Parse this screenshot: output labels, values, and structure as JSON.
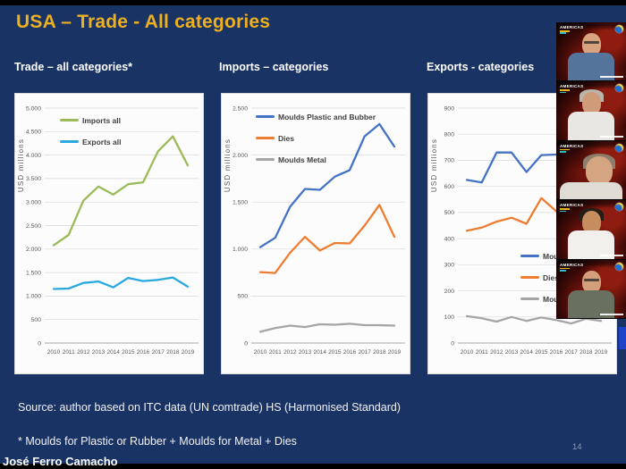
{
  "slide": {
    "title": "USA – Trade - All categories",
    "source": "Source: author based on ITC data (UN comtrade) HS (Harmonised Standard)",
    "footnote": "* Moulds for Plastic or Rubber + Moulds for Metal + Dies",
    "author": "José Ferro Camacho",
    "page_number": "14"
  },
  "colors": {
    "slide_bg": "#1a3365",
    "title_gold": "#edb021",
    "imports_green": "#9bbb59",
    "exports_cyan": "#2aa9e0",
    "moulds_blue": "#4472c4",
    "dies_orange": "#ed7d31",
    "metal_gray": "#a5a5a5"
  },
  "chart_data": [
    {
      "type": "line",
      "title": "Trade – all categories*",
      "ylabel": "USD millions",
      "x": [
        2010,
        2011,
        2012,
        2013,
        2014,
        2015,
        2016,
        2017,
        2018,
        2019
      ],
      "ylim": [
        0,
        5000
      ],
      "grid": true,
      "legend_position": "top-left",
      "ytick_labels": [
        "0",
        "500",
        "1.000",
        "1.500",
        "2.000",
        "2.500",
        "3.000",
        "3.500",
        "4.000",
        "4.500",
        "5.000"
      ],
      "series": [
        {
          "name": "Imports all",
          "color": "#9bbb59",
          "values": [
            2080,
            2300,
            3030,
            3330,
            3160,
            3380,
            3420,
            4080,
            4400,
            3780
          ]
        },
        {
          "name": "Exports all",
          "color": "#2aa9e0",
          "values": [
            1150,
            1160,
            1280,
            1310,
            1185,
            1385,
            1320,
            1345,
            1395,
            1200
          ]
        }
      ]
    },
    {
      "type": "line",
      "title": "Imports – categories",
      "ylabel": "USD millions",
      "x": [
        2010,
        2011,
        2012,
        2013,
        2014,
        2015,
        2016,
        2017,
        2018,
        2019
      ],
      "ylim": [
        0,
        2500
      ],
      "grid": true,
      "legend_position": "top-left",
      "ytick_labels": [
        "0",
        "500",
        "1.000",
        "1.500",
        "2.000",
        "2.500"
      ],
      "series": [
        {
          "name": "Moulds Plastic and Bubber",
          "color": "#4472c4",
          "values": [
            1020,
            1120,
            1450,
            1640,
            1630,
            1770,
            1840,
            2200,
            2330,
            2090
          ]
        },
        {
          "name": "Dies",
          "color": "#ed7d31",
          "values": [
            755,
            745,
            960,
            1130,
            985,
            1065,
            1060,
            1250,
            1470,
            1130
          ]
        },
        {
          "name": "Moulds Metal",
          "color": "#a5a5a5",
          "values": [
            120,
            160,
            185,
            170,
            200,
            195,
            205,
            190,
            190,
            185
          ]
        }
      ]
    },
    {
      "type": "line",
      "title": "Exports - categories",
      "ylabel": "USD millions",
      "x": [
        2010,
        2011,
        2012,
        2013,
        2014,
        2015,
        2016,
        2017,
        2018,
        2019
      ],
      "ylim": [
        0,
        900
      ],
      "grid": true,
      "legend_position": "middle-right",
      "ytick_labels": [
        "0",
        "100",
        "200",
        "300",
        "400",
        "500",
        "600",
        "700",
        "800",
        "900"
      ],
      "series": [
        {
          "name": "Moulds Plastic and Rubber",
          "color": "#4472c4",
          "values": [
            625,
            615,
            730,
            730,
            655,
            720,
            722,
            725,
            720,
            712
          ]
        },
        {
          "name": "Dies",
          "color": "#ed7d31",
          "values": [
            430,
            442,
            465,
            480,
            457,
            555,
            505,
            525,
            545,
            515
          ]
        },
        {
          "name": "Moulds Metal",
          "color": "#a5a5a5",
          "values": [
            103,
            95,
            82,
            100,
            85,
            98,
            88,
            75,
            93,
            85
          ]
        }
      ]
    }
  ],
  "webcam": {
    "brand": "AMERICAS",
    "thumbnails": [
      {
        "person": "bald man with glasses, blue shirt, hand on chin",
        "skin": "#d8a37e",
        "shirt": "#54749c",
        "hair": null,
        "glasses": true,
        "closeup": false
      },
      {
        "person": "gray-haired man in white polo",
        "skin": "#d09b79",
        "shirt": "#e9e7e3",
        "hair": "#b9b5ad",
        "glasses": false,
        "closeup": false
      },
      {
        "person": "gray-haired man facing camera close-up",
        "skin": "#d5a480",
        "shirt": "#dfdcd6",
        "hair": "#8d7d6d",
        "glasses": false,
        "closeup": true
      },
      {
        "person": "dark-haired man in white shirt",
        "skin": "#c68e5f",
        "shirt": "#f2f0ec",
        "hair": "#241d18",
        "glasses": false,
        "closeup": false
      },
      {
        "person": "bald man with glasses in gray jacket",
        "skin": "#d3a07b",
        "shirt": "#68705f",
        "hair": null,
        "glasses": true,
        "closeup": false
      }
    ]
  }
}
